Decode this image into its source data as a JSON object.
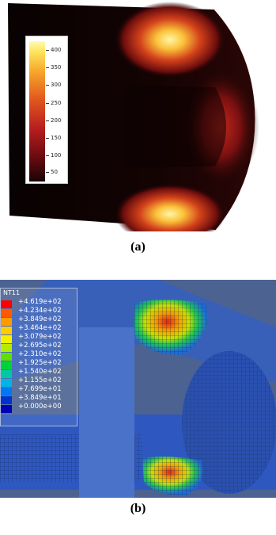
{
  "panel_a": {
    "colorbar": {
      "tick_labels": [
        "400",
        "350",
        "300",
        "250",
        "200",
        "150",
        "100",
        "50"
      ],
      "colors": [
        "#fffbb0",
        "#fde35a",
        "#f7a52a",
        "#e0561e",
        "#b71f1f",
        "#6d0b10",
        "#1a0405"
      ]
    },
    "caption": "(a)"
  },
  "panel_b": {
    "legend": {
      "title": "NT11",
      "entries": [
        {
          "value": "+4.619e+02",
          "color": "#ff0000"
        },
        {
          "value": "+4.234e+02",
          "color": "#ff5a00"
        },
        {
          "value": "+3.849e+02",
          "color": "#ff9900"
        },
        {
          "value": "+3.464e+02",
          "color": "#ffcc00"
        },
        {
          "value": "+3.079e+02",
          "color": "#f5f000"
        },
        {
          "value": "+2.695e+02",
          "color": "#b4ec00"
        },
        {
          "value": "+2.310e+02",
          "color": "#5ee000"
        },
        {
          "value": "+1.925e+02",
          "color": "#00d23c"
        },
        {
          "value": "+1.540e+02",
          "color": "#00c8a0"
        },
        {
          "value": "+1.155e+02",
          "color": "#00b4e6"
        },
        {
          "value": "+7.699e+01",
          "color": "#0078f0"
        },
        {
          "value": "+3.849e+01",
          "color": "#0032d2"
        },
        {
          "value": "+0.000e+00",
          "color": "#0000b4"
        }
      ]
    },
    "caption": "(b)"
  }
}
